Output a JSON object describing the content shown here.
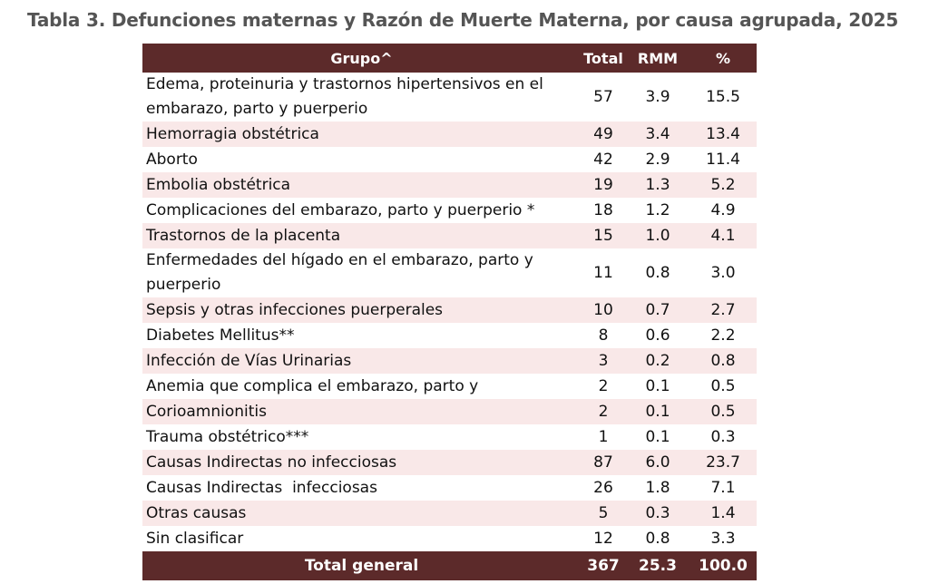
{
  "title": "Tabla 3. Defunciones maternas y Razón de Muerte Materna, por causa agrupada, 2025",
  "table": {
    "header": [
      "Grupo^",
      "Total",
      "RMM",
      "%"
    ],
    "rows": [
      [
        "Edema, proteinuria y trastornos hipertensivos en el embarazo, parto y puerperio",
        "57",
        "3.9",
        "15.5"
      ],
      [
        "Hemorragia obstétrica",
        "49",
        "3.4",
        "13.4"
      ],
      [
        "Aborto",
        "42",
        "2.9",
        "11.4"
      ],
      [
        "Embolia obstétrica",
        "19",
        "1.3",
        "5.2"
      ],
      [
        "Complicaciones del embarazo, parto y puerperio *",
        "18",
        "1.2",
        "4.9"
      ],
      [
        "Trastornos de la placenta",
        "15",
        "1.0",
        "4.1"
      ],
      [
        "Enfermedades del hígado en el embarazo, parto y puerperio",
        "11",
        "0.8",
        "3.0"
      ],
      [
        "Sepsis y otras infecciones puerperales",
        "10",
        "0.7",
        "2.7"
      ],
      [
        "Diabetes Mellitus**",
        "8",
        "0.6",
        "2.2"
      ],
      [
        "Infección de Vías Urinarias",
        "3",
        "0.2",
        "0.8"
      ],
      [
        "Anemia que complica el embarazo, parto y",
        "2",
        "0.1",
        "0.5"
      ],
      [
        "Corioamnionitis",
        "2",
        "0.1",
        "0.5"
      ],
      [
        "Trauma obstétrico***",
        "1",
        "0.1",
        "0.3"
      ],
      [
        "Causas Indirectas no infecciosas",
        "87",
        "6.0",
        "23.7"
      ],
      [
        "Causas Indirectas  infecciosas",
        "26",
        "1.8",
        "7.1"
      ],
      [
        "Otras causas",
        "5",
        "0.3",
        "1.4"
      ],
      [
        "Sin clasificar",
        "12",
        "0.8",
        "3.3"
      ]
    ],
    "footer": [
      "Total general",
      "367",
      "25.3",
      "100.0"
    ]
  }
}
